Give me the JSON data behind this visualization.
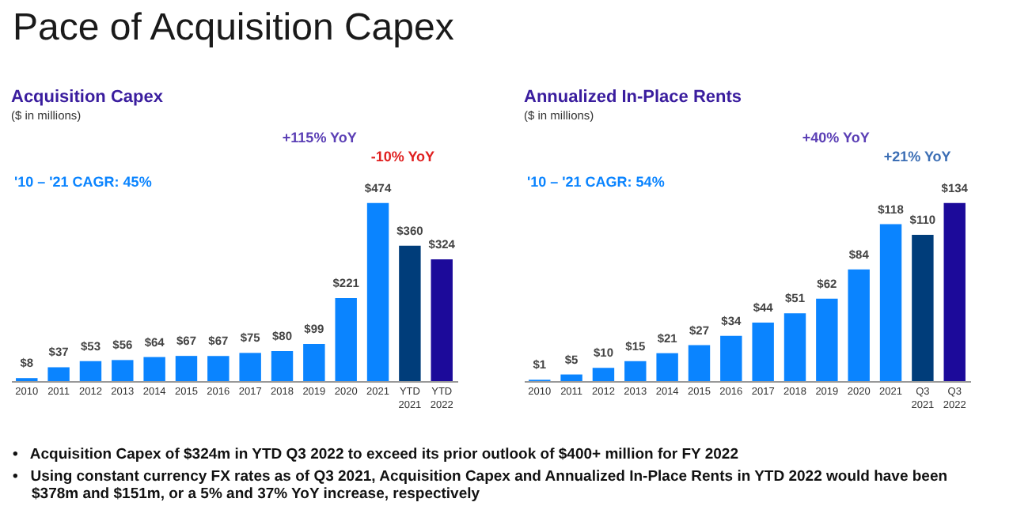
{
  "chart_data": [
    {
      "type": "bar",
      "title": "Acquisition Capex",
      "subtitle": "($ in millions)",
      "annotations": [
        "Pace of Acquisition Capex",
        "+115% YoY",
        "-10% YoY",
        "'10 – '21 CAGR: 45%",
        "•   Acquisition Capex of $324m in YTD Q3 2022 to exceed its prior outlook of $400+ million for FY 2022",
        "•   Using constant currency FX rates as of Q3 2021, Acquisition Capex and Annualized In-Place Rents in YTD 2022 would have been $378m and $151m, or a 5% and 37% YoY increase, respectively"
      ],
      "categories": [
        "2010",
        "2011",
        "2012",
        "2013",
        "2014",
        "2015",
        "2016",
        "2017",
        "2018",
        "2019",
        "2020",
        "2021",
        "YTD 2021",
        "YTD 2022"
      ],
      "values": [
        8,
        37,
        53,
        56,
        64,
        67,
        67,
        75,
        80,
        99,
        221,
        474,
        360,
        324
      ],
      "value_labels": [
        "$8",
        "$37",
        "$53",
        "$56",
        "$64",
        "$67",
        "$67",
        "$75",
        "$80",
        "$99",
        "$221",
        "$474",
        "$360",
        "$324"
      ],
      "colors": [
        "#0a84ff",
        "#0a84ff",
        "#0a84ff",
        "#0a84ff",
        "#0a84ff",
        "#0a84ff",
        "#0a84ff",
        "#0a84ff",
        "#0a84ff",
        "#0a84ff",
        "#0a84ff",
        "#0a84ff",
        "#003d7a",
        "#1c0a9a"
      ]
    },
    {
      "type": "bar",
      "title": "Annualized In-Place Rents",
      "subtitle": "($ in millions)",
      "annotations": [
        "+40% YoY",
        "+21% YoY",
        "'10 – '21 CAGR: 54%"
      ],
      "categories": [
        "2010",
        "2011",
        "2012",
        "2013",
        "2014",
        "2015",
        "2016",
        "2017",
        "2018",
        "2019",
        "2020",
        "2021",
        "Q3 2021",
        "Q3 2022"
      ],
      "values": [
        1,
        5,
        10,
        15,
        21,
        27,
        34,
        44,
        51,
        62,
        84,
        118,
        110,
        134
      ],
      "value_labels": [
        "$1",
        "$5",
        "$10",
        "$15",
        "$21",
        "$27",
        "$34",
        "$44",
        "$51",
        "$62",
        "$84",
        "$118",
        "$110",
        "$134"
      ],
      "colors": [
        "#0a84ff",
        "#0a84ff",
        "#0a84ff",
        "#0a84ff",
        "#0a84ff",
        "#0a84ff",
        "#0a84ff",
        "#0a84ff",
        "#0a84ff",
        "#0a84ff",
        "#0a84ff",
        "#0a84ff",
        "#003d7a",
        "#1c0a9a"
      ]
    }
  ]
}
